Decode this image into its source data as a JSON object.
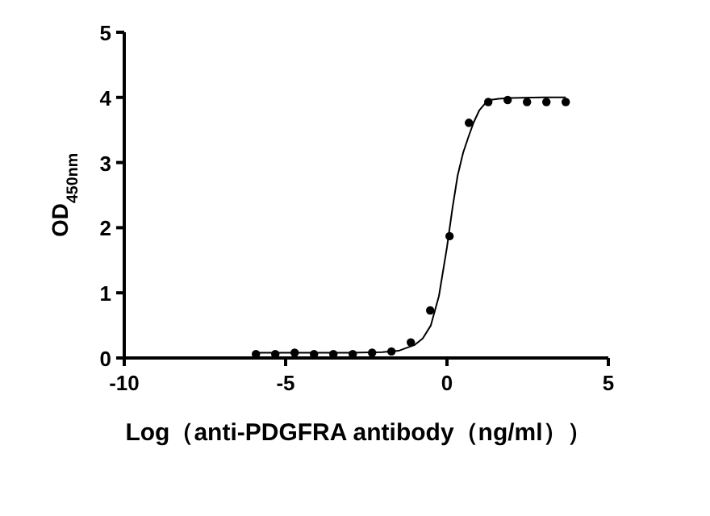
{
  "chart_data": {
    "type": "scatter",
    "xlabel": "Log（anti-PDGFRA antibody（ng/ml））",
    "ylabel": "OD$_{450nm}$",
    "xlim": [
      -10,
      5
    ],
    "xticks": [
      -10,
      -5,
      0,
      5
    ],
    "ylim": [
      0,
      5
    ],
    "yticks": [
      0,
      1,
      2,
      3,
      4,
      5
    ],
    "grid": false,
    "series": [
      {
        "color": "#000000",
        "marker": "circle",
        "x": [
          -5.92,
          -5.32,
          -4.72,
          -4.12,
          -3.52,
          -2.92,
          -2.32,
          -1.72,
          -1.12,
          -0.52,
          0.08,
          0.68,
          1.28,
          1.88,
          2.48,
          3.08,
          3.68
        ],
        "values": [
          0.06,
          0.06,
          0.08,
          0.06,
          0.06,
          0.06,
          0.08,
          0.1,
          0.24,
          0.73,
          1.87,
          3.61,
          3.93,
          3.96,
          3.93,
          3.93,
          3.93
        ]
      },
      {
        "type": "line",
        "color": "#000000",
        "marker": "none",
        "x": [
          -5.92,
          -3,
          -2,
          -1.5,
          -1,
          -0.75,
          -0.5,
          -0.25,
          0,
          0.17,
          0.33,
          0.5,
          0.67,
          0.83,
          1.0,
          1.17,
          1.33,
          1.6,
          2.0,
          3.0,
          3.68
        ],
        "values": [
          0.08,
          0.08,
          0.09,
          0.11,
          0.2,
          0.3,
          0.5,
          0.95,
          1.7,
          2.3,
          2.8,
          3.15,
          3.4,
          3.62,
          3.8,
          3.9,
          3.96,
          3.98,
          3.99,
          4.0,
          4.0
        ]
      }
    ]
  }
}
